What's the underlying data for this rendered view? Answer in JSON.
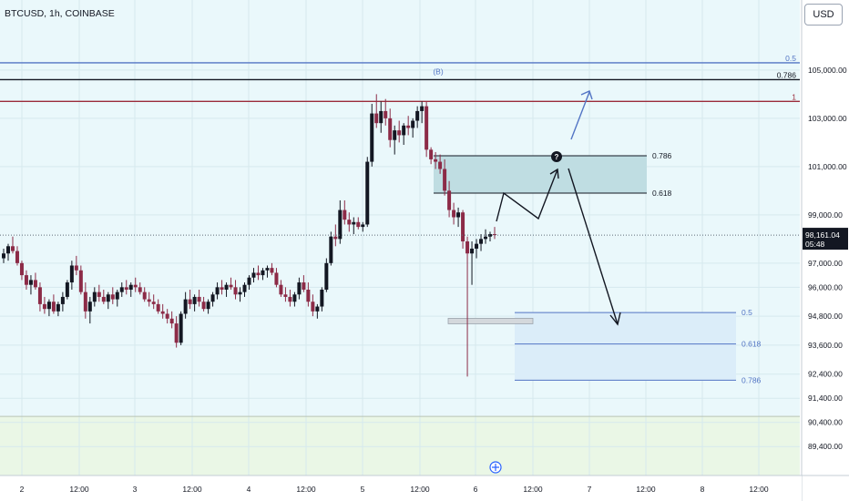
{
  "header": {
    "title": "BTCUSD, 1h, COINBASE",
    "currency_button": "USD"
  },
  "price_badge": {
    "price": "98,161.04",
    "countdown": "05:48"
  },
  "colors": {
    "background": "#eaf8fb",
    "zone_green": "#eaf7e6",
    "up_candle": "#131722",
    "down_candle": "#8c2b47",
    "resistance_red": "#9b2c3b",
    "fib_blue": "#5274c4",
    "zone_gray": "#bfdde2",
    "zone_blue": "#dbedf9"
  },
  "icons": {
    "target_marker": "question-circle-icon",
    "time_nav": "crosshair-icon"
  },
  "annotations": {
    "top_fib_labels": [
      "0.5",
      "0.786",
      "1"
    ],
    "b_marker": "(B)",
    "upper_box_labels": [
      "0.786",
      "0.618"
    ],
    "lower_box_labels": [
      "0.5",
      "0.618",
      "0.786"
    ]
  },
  "chart_data": {
    "type": "candlestick",
    "symbol": "BTCUSD",
    "interval": "1h",
    "exchange": "COINBASE",
    "y_axis": {
      "ticks": [
        "105,000.00",
        "103,000.00",
        "101,000.00",
        "99,000.00",
        "97,000.00",
        "96,000.00",
        "94,800.00",
        "93,600.00",
        "92,400.00",
        "91,400.00",
        "90,400.00",
        "89,400.00"
      ],
      "range": [
        88200,
        107600
      ]
    },
    "x_axis": {
      "ticks": [
        "2",
        "12:00",
        "3",
        "12:00",
        "4",
        "12:00",
        "5",
        "12:00",
        "6",
        "12:00",
        "7",
        "12:00",
        "8",
        "12:00"
      ]
    },
    "last_price": 98161.04,
    "horizontal_levels": [
      {
        "price": 105300,
        "label": "0.5",
        "color": "blue"
      },
      {
        "price": 104600,
        "label": "0.786",
        "color": "black"
      },
      {
        "price": 103700,
        "label": "1",
        "color": "red"
      }
    ],
    "zones": [
      {
        "name": "upper-box",
        "top": 101450,
        "bottom": 99900,
        "labels": [
          "0.786",
          "0.618"
        ]
      },
      {
        "name": "lower-box",
        "top": 94950,
        "bottom": 92150,
        "levels": [
          94950,
          93650,
          92150
        ],
        "labels": [
          "0.5",
          "0.618",
          "0.786"
        ]
      },
      {
        "name": "green-zone",
        "top": 90650,
        "bottom": 88200
      }
    ],
    "candles": [
      [
        97200,
        97600,
        97000,
        97400
      ],
      [
        97400,
        97800,
        97100,
        97700
      ],
      [
        97700,
        98100,
        97400,
        97500
      ],
      [
        97500,
        97700,
        96900,
        97000
      ],
      [
        97000,
        97100,
        96300,
        96500
      ],
      [
        96500,
        96700,
        95900,
        96100
      ],
      [
        96100,
        96500,
        95700,
        96300
      ],
      [
        96300,
        96600,
        95900,
        96000
      ],
      [
        96000,
        96200,
        95000,
        95300
      ],
      [
        95300,
        95600,
        94900,
        95100
      ],
      [
        95100,
        95500,
        94800,
        95400
      ],
      [
        95400,
        95700,
        94900,
        95000
      ],
      [
        95000,
        95400,
        94800,
        95300
      ],
      [
        95300,
        95800,
        95000,
        95600
      ],
      [
        95600,
        96300,
        95500,
        96200
      ],
      [
        96200,
        97100,
        95900,
        96900
      ],
      [
        96900,
        97300,
        96500,
        96700
      ],
      [
        96700,
        96900,
        95700,
        95800
      ],
      [
        95800,
        96200,
        94700,
        95000
      ],
      [
        95000,
        95600,
        94500,
        95400
      ],
      [
        95400,
        96000,
        95200,
        95800
      ],
      [
        95800,
        96100,
        95400,
        95600
      ],
      [
        95600,
        95900,
        95300,
        95400
      ],
      [
        95400,
        95800,
        95100,
        95700
      ],
      [
        95700,
        96000,
        95300,
        95500
      ],
      [
        95500,
        95900,
        95200,
        95800
      ],
      [
        95800,
        96200,
        95600,
        96000
      ],
      [
        96000,
        96300,
        95700,
        95900
      ],
      [
        95900,
        96200,
        95600,
        96100
      ],
      [
        96100,
        96400,
        95800,
        96000
      ],
      [
        96000,
        96200,
        95700,
        95800
      ],
      [
        95800,
        96000,
        95400,
        95500
      ],
      [
        95500,
        95800,
        95200,
        95400
      ],
      [
        95400,
        95700,
        95100,
        95300
      ],
      [
        95300,
        95500,
        94900,
        95000
      ],
      [
        95000,
        95300,
        94700,
        94900
      ],
      [
        94900,
        95100,
        94500,
        94700
      ],
      [
        94700,
        95000,
        94300,
        94500
      ],
      [
        94500,
        94800,
        93500,
        93700
      ],
      [
        93700,
        95000,
        93600,
        94900
      ],
      [
        94900,
        95800,
        94700,
        95500
      ],
      [
        95500,
        95900,
        95100,
        95300
      ],
      [
        95300,
        95700,
        95000,
        95600
      ],
      [
        95600,
        95900,
        95200,
        95400
      ],
      [
        95400,
        95600,
        95000,
        95100
      ],
      [
        95100,
        95500,
        94900,
        95400
      ],
      [
        95400,
        95800,
        95200,
        95700
      ],
      [
        95700,
        96200,
        95500,
        96000
      ],
      [
        96000,
        96300,
        95700,
        95900
      ],
      [
        95900,
        96200,
        95600,
        96100
      ],
      [
        96100,
        96400,
        95900,
        96000
      ],
      [
        96000,
        96300,
        95500,
        95700
      ],
      [
        95700,
        96000,
        95400,
        95800
      ],
      [
        95800,
        96200,
        95600,
        96100
      ],
      [
        96100,
        96500,
        95900,
        96400
      ],
      [
        96400,
        96800,
        96200,
        96600
      ],
      [
        96600,
        96900,
        96300,
        96500
      ],
      [
        96500,
        96800,
        96300,
        96700
      ],
      [
        96700,
        96900,
        96400,
        96800
      ],
      [
        96800,
        97000,
        96500,
        96600
      ],
      [
        96600,
        96800,
        96000,
        96100
      ],
      [
        96100,
        96300,
        95600,
        95700
      ],
      [
        95700,
        96000,
        95400,
        95600
      ],
      [
        95600,
        95900,
        95200,
        95400
      ],
      [
        95400,
        95800,
        95200,
        95700
      ],
      [
        95700,
        96400,
        95500,
        96200
      ],
      [
        96200,
        96500,
        95800,
        95900
      ],
      [
        95900,
        96200,
        95200,
        95400
      ],
      [
        95400,
        95700,
        94800,
        95000
      ],
      [
        95000,
        95300,
        94700,
        95200
      ],
      [
        95200,
        96000,
        95000,
        95900
      ],
      [
        95900,
        97200,
        95800,
        97000
      ],
      [
        97000,
        98300,
        96900,
        98100
      ],
      [
        98100,
        98600,
        97700,
        98000
      ],
      [
        98000,
        99600,
        97800,
        99200
      ],
      [
        99200,
        99600,
        98600,
        98800
      ],
      [
        98800,
        99100,
        98300,
        98600
      ],
      [
        98600,
        98900,
        98200,
        98700
      ],
      [
        98700,
        98900,
        98400,
        98500
      ],
      [
        98500,
        98700,
        98300,
        98600
      ],
      [
        98600,
        101400,
        98500,
        101200
      ],
      [
        101200,
        103600,
        101000,
        103200
      ],
      [
        103200,
        104000,
        102600,
        102800
      ],
      [
        102800,
        103700,
        102400,
        103300
      ],
      [
        103300,
        103800,
        102700,
        103000
      ],
      [
        103000,
        103400,
        101800,
        102100
      ],
      [
        102100,
        102700,
        101500,
        102500
      ],
      [
        102500,
        102900,
        102000,
        102300
      ],
      [
        102300,
        102800,
        101900,
        102700
      ],
      [
        102700,
        103100,
        102300,
        102600
      ],
      [
        102600,
        103000,
        102200,
        102900
      ],
      [
        102900,
        103500,
        102600,
        103300
      ],
      [
        103300,
        103700,
        102800,
        103500
      ],
      [
        103500,
        103700,
        101400,
        101700
      ],
      [
        101700,
        101800,
        101100,
        101300
      ],
      [
        101300,
        101600,
        100900,
        101200
      ],
      [
        101200,
        101500,
        100700,
        100900
      ],
      [
        100900,
        101300,
        99800,
        100000
      ],
      [
        100000,
        100400,
        98900,
        99200
      ],
      [
        99200,
        99500,
        98600,
        98900
      ],
      [
        98900,
        99300,
        98500,
        99100
      ],
      [
        99100,
        99200,
        97600,
        97900
      ],
      [
        97900,
        98100,
        92300,
        97400
      ],
      [
        97400,
        97900,
        96100,
        97600
      ],
      [
        97600,
        98000,
        97200,
        97800
      ],
      [
        97800,
        98200,
        97500,
        98000
      ],
      [
        98000,
        98400,
        97800,
        98100
      ],
      [
        98100,
        98300,
        97900,
        98200
      ],
      [
        98200,
        98500,
        98000,
        98161
      ]
    ]
  }
}
